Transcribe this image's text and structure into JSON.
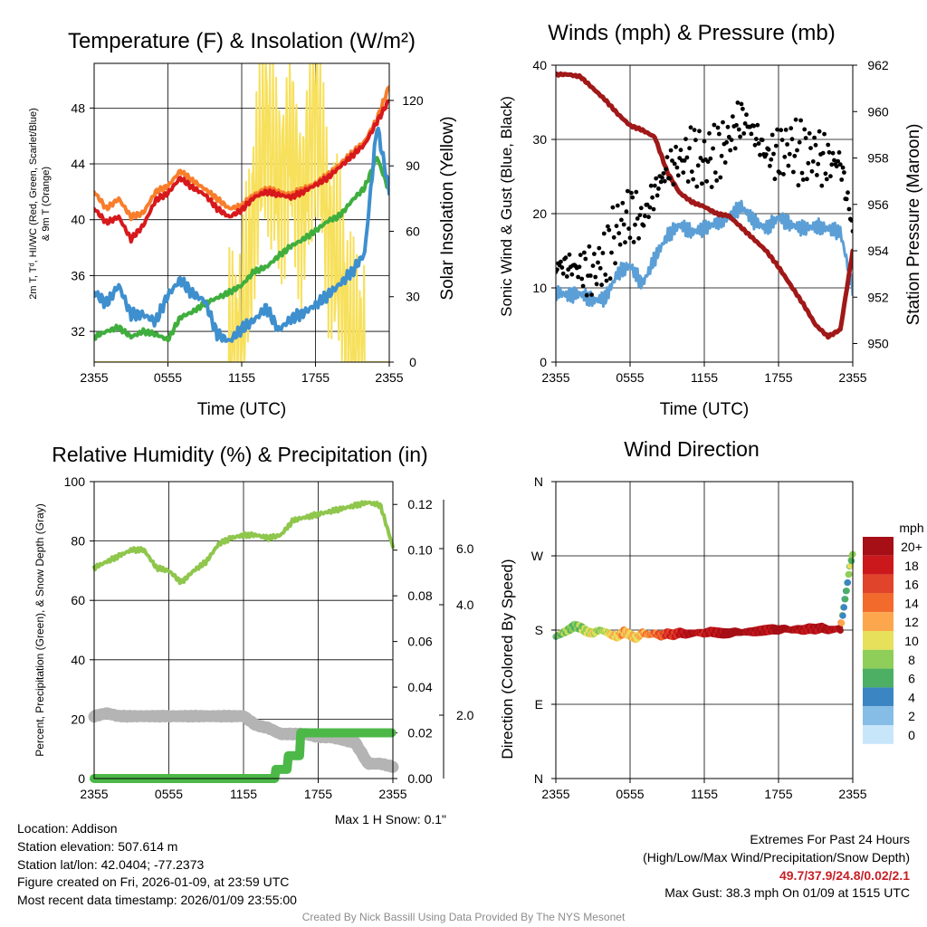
{
  "colors": {
    "red": "#d7191c",
    "orange": "#f87e2c",
    "green": "#3fae3d",
    "blue": "#3e8fce",
    "yellow": "#f7e05c",
    "maroon": "#a01818",
    "lightblue": "#5b9fd6",
    "lightgreen": "#8fc64c",
    "gray": "#b4b4b4",
    "precip_green": "#4cb848"
  },
  "chart_data": [
    {
      "id": "temperature",
      "type": "line",
      "title": "Temperature (F) & Insolation (W/m²)",
      "xlabel": "Time (UTC)",
      "ylabel_left": "2m T, T_d, HI/WC (Red, Green, Scarlet/Blue) & 9m T (Orange)",
      "ylabel_right": "Solar Insolation (Yellow)",
      "x_ticks": [
        "2355",
        "0555",
        "1155",
        "1755",
        "2355"
      ],
      "ylim_left": [
        29.8,
        51.2
      ],
      "y_ticks_left": [
        "32",
        "36",
        "40",
        "44",
        "48"
      ],
      "ylim_right": [
        0,
        137
      ],
      "y_ticks_right": [
        "0",
        "30",
        "60",
        "90",
        "120"
      ],
      "x_hours": [
        0,
        1,
        2,
        3,
        4,
        5,
        6,
        7,
        8,
        9,
        10,
        11,
        12,
        13,
        14,
        15,
        16,
        17,
        18,
        19,
        20,
        21,
        22,
        23,
        24
      ],
      "series": [
        {
          "name": "9m T",
          "color": "orange",
          "values": [
            42.0,
            40.8,
            41.5,
            40.2,
            40.5,
            42.0,
            42.4,
            43.5,
            42.8,
            42.2,
            41.5,
            40.8,
            41.0,
            41.8,
            42.2,
            42.0,
            41.8,
            42.2,
            42.6,
            43.2,
            44.0,
            44.8,
            45.6,
            47.2,
            49.6
          ]
        },
        {
          "name": "2m T",
          "color": "red",
          "values": [
            40.8,
            39.8,
            40.2,
            38.6,
            39.6,
            41.4,
            41.9,
            43.0,
            42.3,
            41.8,
            40.8,
            40.2,
            40.7,
            41.6,
            42.0,
            41.8,
            41.6,
            42.0,
            42.5,
            43.0,
            43.8,
            44.6,
            45.4,
            47.0,
            48.6
          ]
        },
        {
          "name": "Dew Point",
          "color": "green",
          "values": [
            31.6,
            32.0,
            32.3,
            31.6,
            32.0,
            31.8,
            31.4,
            33.0,
            33.4,
            34.0,
            34.4,
            34.8,
            35.3,
            36.3,
            36.6,
            37.4,
            38.1,
            38.6,
            39.2,
            39.9,
            40.3,
            41.4,
            42.3,
            44.5,
            42.0
          ]
        },
        {
          "name": "Wind Chill",
          "color": "blue",
          "values": [
            34.8,
            34.0,
            35.3,
            33.2,
            33.2,
            32.7,
            34.6,
            35.7,
            34.7,
            34.2,
            31.8,
            31.3,
            32.2,
            32.8,
            33.7,
            32.1,
            32.9,
            33.3,
            33.9,
            34.6,
            35.4,
            36.3,
            37.6,
            46.8,
            42.0
          ]
        },
        {
          "name": "Solar Insolation",
          "color": "yellow",
          "axis": "right",
          "values": [
            0,
            0,
            0,
            0,
            0,
            0,
            0,
            0,
            0,
            0,
            0,
            0,
            10,
            70,
            110,
            80,
            100,
            70,
            120,
            60,
            40,
            5,
            0,
            0,
            0
          ]
        }
      ]
    },
    {
      "id": "winds",
      "type": "line",
      "title": "Winds (mph) & Pressure (mb)",
      "xlabel": "Time (UTC)",
      "ylabel_left": "Sonic Wind & Gust (Blue, Black)",
      "ylabel_right": "Station Pressure (Maroon)",
      "x_ticks": [
        "2355",
        "0555",
        "1155",
        "1755",
        "2355"
      ],
      "ylim_left": [
        0,
        40
      ],
      "y_ticks_left": [
        "0",
        "10",
        "20",
        "30",
        "40"
      ],
      "ylim_right": [
        949.2,
        962.0
      ],
      "y_ticks_right": [
        "950",
        "952",
        "954",
        "956",
        "958",
        "960",
        "962"
      ],
      "x_hours": [
        0,
        1,
        2,
        3,
        4,
        5,
        6,
        7,
        8,
        9,
        10,
        11,
        12,
        13,
        14,
        15,
        16,
        17,
        18,
        19,
        20,
        21,
        22,
        23,
        24
      ],
      "series": [
        {
          "name": "Sonic Wind",
          "color": "lightblue",
          "values": [
            9.5,
            9.0,
            9.2,
            8.3,
            8.6,
            12.0,
            13.0,
            10.5,
            14.0,
            17.0,
            18.5,
            17.5,
            18.0,
            18.8,
            19.5,
            21.0,
            19.0,
            18.0,
            19.5,
            18.5,
            18.0,
            18.3,
            18.0,
            17.5,
            10.0
          ]
        },
        {
          "name": "Gust",
          "color": "black",
          "values": [
            13,
            13,
            12.5,
            12,
            14,
            18,
            20,
            19,
            23,
            26,
            27,
            28,
            27,
            28,
            30,
            33,
            31,
            28,
            28,
            29,
            28,
            28,
            27,
            27,
            18
          ]
        },
        {
          "name": "Station Pressure",
          "color": "maroon",
          "axis": "right",
          "values": [
            961.6,
            961.6,
            961.5,
            961.0,
            960.5,
            959.9,
            959.4,
            959.2,
            958.9,
            957.4,
            956.5,
            956.1,
            955.9,
            955.6,
            955.5,
            955.0,
            954.5,
            954.0,
            953.3,
            952.5,
            951.7,
            950.8,
            950.3,
            950.6,
            954.0
          ]
        }
      ]
    },
    {
      "id": "humidity",
      "type": "line",
      "title": "Relative Humidity (%) & Precipitation (in)",
      "ylabel_left": "Percent, Precipitation (Green), & Snow Depth (Gray)",
      "x_ticks": [
        "2355",
        "0555",
        "1155",
        "1755",
        "2355"
      ],
      "ylim_left": [
        0,
        100
      ],
      "y_ticks_left": [
        "0",
        "20",
        "40",
        "60",
        "80",
        "100"
      ],
      "ylim_precip": [
        0,
        0.13
      ],
      "y_ticks_precip": [
        "0.00",
        "0.02",
        "0.04",
        "0.06",
        "0.08",
        "0.10",
        "0.12"
      ],
      "y_ticks_snow": [
        "2.0",
        "4.0",
        "6.0"
      ],
      "note": "Max 1 H Snow: 0.1\"",
      "x_hours": [
        0,
        1,
        2,
        3,
        4,
        5,
        6,
        7,
        8,
        9,
        10,
        11,
        12,
        13,
        14,
        15,
        16,
        17,
        18,
        19,
        20,
        21,
        22,
        23,
        24
      ],
      "series": [
        {
          "name": "Relative Humidity",
          "color": "lightgreen",
          "values": [
            71,
            73,
            75,
            77,
            77,
            71,
            70,
            66,
            70,
            73,
            79,
            81,
            82,
            82,
            81,
            82,
            87,
            88,
            89,
            90,
            91,
            92,
            93,
            92,
            78
          ]
        },
        {
          "name": "Snow Depth",
          "color": "gray",
          "values": [
            21,
            22,
            21,
            21,
            21,
            21,
            21,
            21,
            21,
            21,
            21,
            21,
            21,
            18,
            17,
            15,
            15,
            15,
            14,
            14,
            13,
            12,
            5,
            5,
            4
          ]
        },
        {
          "name": "Precipitation",
          "color": "precip_green",
          "axis": "precip",
          "values": [
            0,
            0,
            0,
            0,
            0,
            0,
            0,
            0,
            0,
            0,
            0,
            0,
            0,
            0,
            0,
            0.004,
            0.01,
            0.02,
            0.02,
            0.02,
            0.02,
            0.02,
            0.02,
            0.02,
            0.02
          ]
        }
      ]
    },
    {
      "id": "wind-direction",
      "type": "scatter",
      "title": "Wind Direction",
      "ylabel_left": "Direction (Colored By Speed)",
      "x_ticks": [
        "2355",
        "0555",
        "1155",
        "1755",
        "2355"
      ],
      "y_labels": [
        "N",
        "E",
        "S",
        "W",
        "N"
      ],
      "ylim_deg": [
        0,
        360
      ],
      "legend": {
        "title": "mph",
        "labels": [
          "20+",
          "18",
          "16",
          "14",
          "12",
          "10",
          "8",
          "6",
          "4",
          "2",
          "0"
        ],
        "colors": [
          "#a50f15",
          "#cb181d",
          "#e0442a",
          "#f26a2c",
          "#fca74d",
          "#e7e05a",
          "#8fce58",
          "#4caf64",
          "#3b86c2",
          "#86bde6",
          "#c8e6fa"
        ]
      },
      "x_hours": [
        0,
        0.5,
        1,
        1.5,
        2,
        2.5,
        3,
        3.5,
        4,
        4.5,
        5,
        5.5,
        6,
        6.5,
        7,
        7.5,
        8,
        8.5,
        9,
        9.5,
        10,
        10.5,
        11,
        11.5,
        12,
        12.5,
        13,
        13.5,
        14,
        14.5,
        15,
        15.5,
        16,
        16.5,
        17,
        17.5,
        18,
        18.5,
        19,
        19.5,
        20,
        20.5,
        21,
        21.5,
        22,
        22.5,
        23,
        23.2,
        23.4,
        23.6,
        23.8,
        24
      ],
      "directions": [
        172,
        176,
        180,
        185,
        183,
        178,
        176,
        180,
        178,
        174,
        172,
        178,
        174,
        170,
        177,
        174,
        176,
        173,
        176,
        174,
        177,
        175,
        176,
        177,
        176,
        178,
        177,
        176,
        176,
        178,
        177,
        178,
        178,
        179,
        180,
        181,
        180,
        182,
        180,
        181,
        180,
        182,
        181,
        183,
        180,
        181,
        182,
        200,
        220,
        240,
        260,
        272
      ],
      "speeds": [
        7,
        9,
        9,
        8,
        9,
        10,
        11,
        9,
        10,
        12,
        12,
        13,
        12,
        12,
        13,
        14,
        15,
        16,
        17,
        18,
        19,
        20,
        21,
        20,
        19,
        20,
        20,
        21,
        22,
        23,
        22,
        21,
        20,
        21,
        20,
        21,
        22,
        22,
        21,
        21,
        20,
        20,
        20,
        21,
        21,
        20,
        20,
        6,
        5,
        7,
        9,
        8
      ]
    }
  ],
  "info": {
    "location": "Location: Addison",
    "elevation": "Station elevation: 507.614 m",
    "latlon": "Station lat/lon: 42.0404; -77.2373",
    "created": "Figure created on Fri, 2026-01-09, at 23:59 UTC",
    "recent": "Most recent data timestamp: 2026/01/09 23:55:00"
  },
  "extremes": {
    "heading": "Extremes For Past 24 Hours",
    "format": "(High/Low/Max Wind/Precipitation/Snow Depth)",
    "values": "49.7/37.9/24.8/0.02/2.1",
    "gust": "Max Gust: 38.3 mph On 01/09 at 1515 UTC"
  },
  "credit": "Created By Nick Bassill Using Data Provided By The NYS Mesonet"
}
